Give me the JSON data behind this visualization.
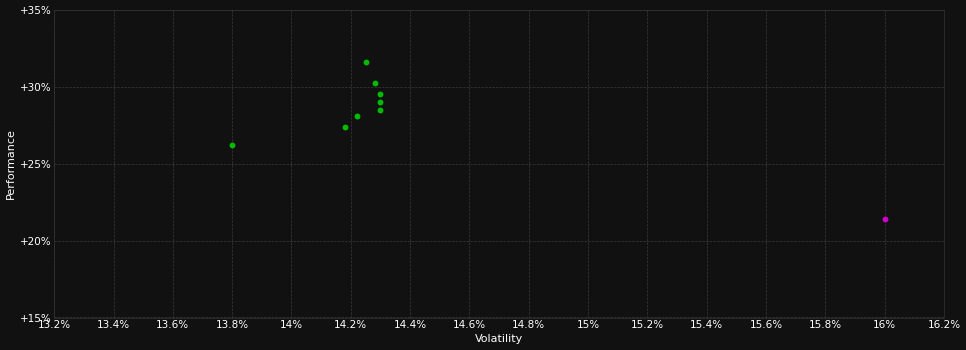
{
  "background_color": "#111111",
  "plot_bg_color": "#111111",
  "grid_color": "#3a3a3a",
  "xlabel": "Volatility",
  "ylabel": "Performance",
  "xlim": [
    13.2,
    16.2
  ],
  "ylim": [
    15.0,
    35.0
  ],
  "xticks": [
    13.2,
    13.4,
    13.6,
    13.8,
    14.0,
    14.2,
    14.4,
    14.6,
    14.8,
    15.0,
    15.2,
    15.4,
    15.6,
    15.8,
    16.0,
    16.2
  ],
  "yticks": [
    15.0,
    20.0,
    25.0,
    30.0,
    35.0
  ],
  "ytick_labels": [
    "+15%",
    "+20%",
    "+25%",
    "+30%",
    "+35%"
  ],
  "green_points": [
    [
      14.25,
      31.6
    ],
    [
      14.28,
      30.2
    ],
    [
      14.3,
      29.5
    ],
    [
      14.3,
      29.0
    ],
    [
      14.3,
      28.5
    ],
    [
      14.22,
      28.1
    ],
    [
      14.18,
      27.4
    ],
    [
      13.8,
      26.2
    ]
  ],
  "magenta_point": [
    16.0,
    21.4
  ],
  "green_color": "#00bb00",
  "magenta_color": "#cc00cc",
  "dot_size": 18,
  "axis_label_fontsize": 8,
  "tick_fontsize": 7.5
}
